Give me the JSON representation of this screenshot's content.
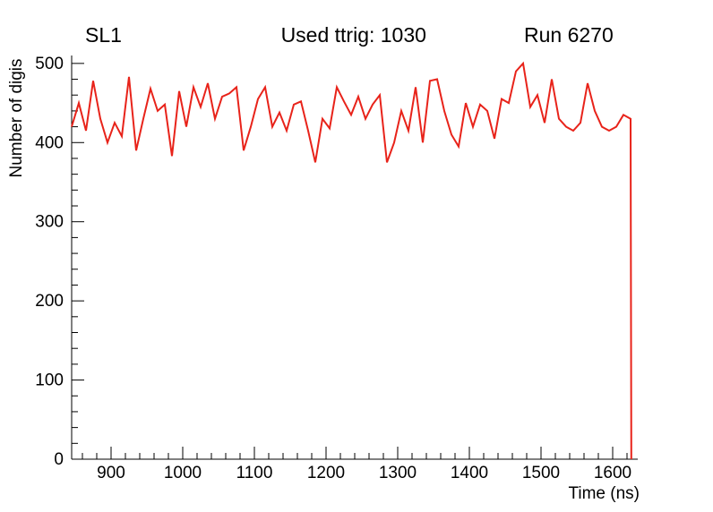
{
  "header": {
    "left_label": "SL1",
    "center_label": "Used ttrig: 1030",
    "right_label": "Run 6270"
  },
  "chart_data": {
    "type": "line",
    "title": "",
    "xlabel": "Time (ns)",
    "ylabel": "Number of digis",
    "xlim": [
      845,
      1635
    ],
    "ylim": [
      0,
      510
    ],
    "x_major_ticks": [
      900,
      1000,
      1100,
      1200,
      1300,
      1400,
      1500,
      1600
    ],
    "y_major_ticks": [
      0,
      100,
      200,
      300,
      400,
      500
    ],
    "x_minor_step": 20,
    "y_minor_step": 20,
    "grid": false,
    "legend": false,
    "line_color": "#e8231a",
    "axis_color": "#000000",
    "series": [
      {
        "name": "number-of-digis",
        "x": [
          845,
          855,
          865,
          875,
          885,
          895,
          905,
          915,
          925,
          935,
          945,
          955,
          965,
          975,
          985,
          995,
          1005,
          1015,
          1025,
          1035,
          1045,
          1055,
          1065,
          1075,
          1085,
          1095,
          1105,
          1115,
          1125,
          1135,
          1145,
          1155,
          1165,
          1175,
          1185,
          1195,
          1205,
          1215,
          1225,
          1235,
          1245,
          1255,
          1265,
          1275,
          1285,
          1295,
          1305,
          1315,
          1325,
          1335,
          1345,
          1355,
          1365,
          1375,
          1385,
          1395,
          1405,
          1415,
          1425,
          1435,
          1445,
          1455,
          1465,
          1475,
          1485,
          1495,
          1505,
          1515,
          1525,
          1535,
          1545,
          1555,
          1565,
          1575,
          1585,
          1595,
          1605,
          1615,
          1625,
          1626
        ],
        "y": [
          420,
          450,
          415,
          478,
          430,
          400,
          425,
          408,
          483,
          390,
          430,
          468,
          440,
          448,
          383,
          465,
          420,
          470,
          445,
          475,
          430,
          458,
          462,
          470,
          390,
          420,
          455,
          470,
          420,
          438,
          415,
          448,
          452,
          415,
          375,
          430,
          418,
          470,
          452,
          435,
          458,
          430,
          448,
          460,
          375,
          400,
          440,
          415,
          470,
          400,
          478,
          480,
          440,
          410,
          395,
          450,
          420,
          448,
          440,
          405,
          455,
          450,
          490,
          500,
          445,
          460,
          425,
          480,
          430,
          420,
          415,
          425,
          475,
          440,
          420,
          415,
          420,
          435,
          430,
          0
        ]
      }
    ]
  }
}
